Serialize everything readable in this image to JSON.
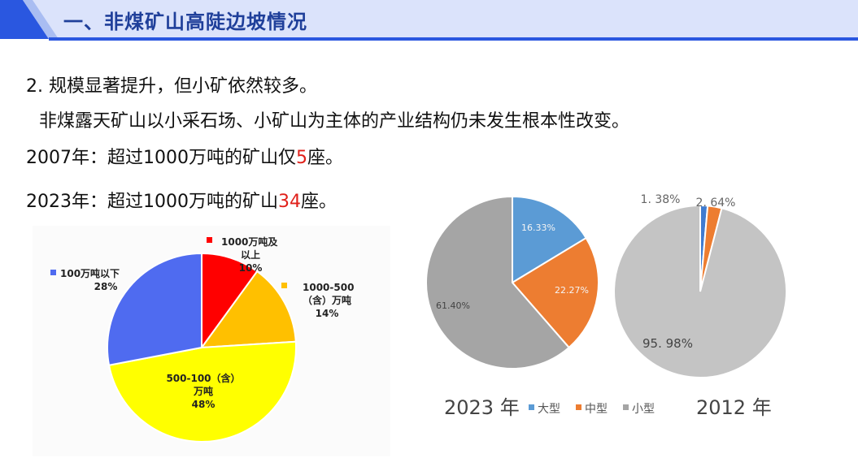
{
  "header": {
    "title": "一、非煤矿山高陡边坡情况",
    "colors": {
      "band": "#dbe3fb",
      "accent": "#2a57e0",
      "title": "#1f3f9a"
    }
  },
  "text": {
    "line1": "2. 规模显著提升，但小矿依然较多。",
    "line2": "非煤露天矿山以小采石场、小矿山为主体的产业结构仍未发生根本性改变。",
    "line3_prefix": "2007年：超过1000万吨的矿山仅",
    "line3_value": "5",
    "line3_suffix": "座。",
    "line4_prefix": "2023年：超过1000万吨的矿山",
    "line4_value": "34",
    "line4_suffix": "座。"
  },
  "chart_data": [
    {
      "type": "pie",
      "slices": [
        {
          "label_lines": [
            "1000万吨及",
            "以上"
          ],
          "pct": "10%",
          "value": 10,
          "color": "#ff0000"
        },
        {
          "label_lines": [
            "1000-500",
            "（含）万吨"
          ],
          "pct": "14%",
          "value": 14,
          "color": "#ffc000"
        },
        {
          "label_lines": [
            "500-100（含）",
            "万吨"
          ],
          "pct": "48%",
          "value": 48,
          "color": "#ffff00"
        },
        {
          "label_lines": [
            "100万吨以下"
          ],
          "pct": "28%",
          "value": 28,
          "color": "#4f6bf0"
        }
      ]
    },
    {
      "type": "pie",
      "caption": "2023 年",
      "slices": [
        {
          "series": "大型",
          "label": "16.33%",
          "value": 16.33,
          "color": "#5b9bd5"
        },
        {
          "series": "中型",
          "label": "22.27%",
          "value": 22.27,
          "color": "#ed7d31"
        },
        {
          "series": "小型",
          "label": "61.40%",
          "value": 61.4,
          "color": "#a5a5a5"
        }
      ]
    },
    {
      "type": "pie",
      "caption": "2012 年",
      "slices": [
        {
          "series": "大型",
          "label": "1. 38%",
          "value": 1.38,
          "color": "#3f7bd0"
        },
        {
          "series": "中型",
          "label": "2. 64%",
          "value": 2.64,
          "color": "#ed7d31"
        },
        {
          "series": "小型",
          "label": "95. 98%",
          "value": 95.98,
          "color": "#c4c4c4"
        }
      ]
    }
  ],
  "legend": [
    {
      "name": "大型",
      "color": "#5b9bd5"
    },
    {
      "name": "中型",
      "color": "#ed7d31"
    },
    {
      "name": "小型",
      "color": "#a5a5a5"
    }
  ]
}
